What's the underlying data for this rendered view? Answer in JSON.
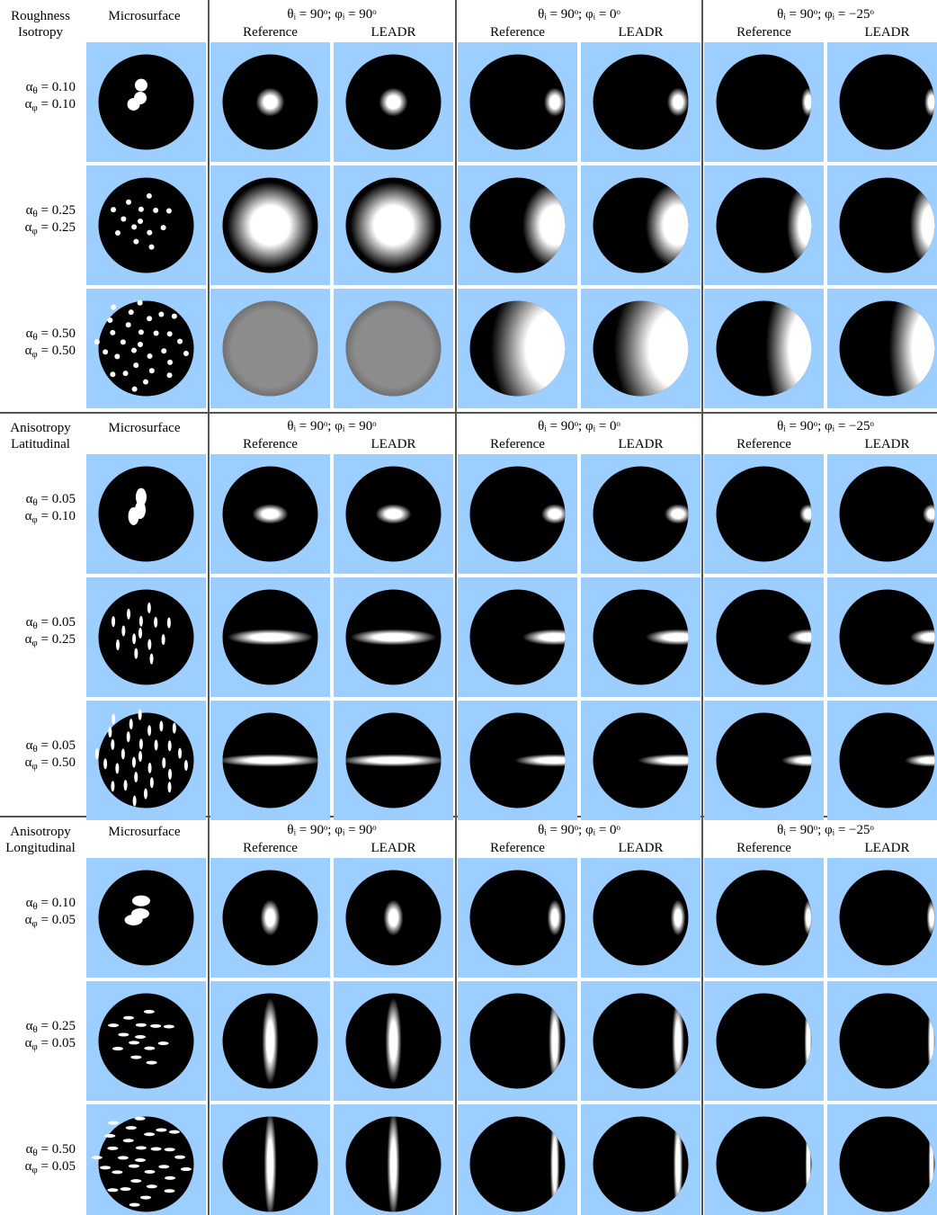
{
  "sections": [
    {
      "label": [
        "Roughness",
        "Isotropy"
      ],
      "microsurface": "Microsurface",
      "groups": [
        {
          "title": "θᵢ = 90ᵒ; φᵢ = 90ᵒ",
          "columns": [
            "Reference",
            "LEADR"
          ]
        },
        {
          "title": "θᵢ = 90ᵒ; φᵢ = 0ᵒ",
          "columns": [
            "Reference",
            "LEADR"
          ]
        },
        {
          "title": "θᵢ = 90ᵒ; φᵢ = −25ᵒ",
          "columns": [
            "Reference",
            "LEADR"
          ]
        }
      ],
      "rows": [
        {
          "alpha_theta": {
            "symbol": "α",
            "sub": "θ",
            "value": " = 0.10"
          },
          "alpha_phi": {
            "symbol": "α",
            "sub": "φ",
            "value": " = 0.10"
          }
        },
        {
          "alpha_theta": {
            "symbol": "α",
            "sub": "θ",
            "value": " = 0.25"
          },
          "alpha_phi": {
            "symbol": "α",
            "sub": "φ",
            "value": " = 0.25"
          }
        },
        {
          "alpha_theta": {
            "symbol": "α",
            "sub": "θ",
            "value": " = 0.50"
          },
          "alpha_phi": {
            "symbol": "α",
            "sub": "φ",
            "value": " = 0.50"
          }
        }
      ]
    },
    {
      "label": [
        "Anisotropy",
        "Latitudinal"
      ],
      "microsurface": "Microsurface",
      "groups": [
        {
          "title": "θᵢ = 90ᵒ; φᵢ = 90ᵒ",
          "columns": [
            "Reference",
            "LEADR"
          ]
        },
        {
          "title": "θᵢ = 90ᵒ; φᵢ = 0ᵒ",
          "columns": [
            "Reference",
            "LEADR"
          ]
        },
        {
          "title": "θᵢ = 90ᵒ; φᵢ = −25ᵒ",
          "columns": [
            "Reference",
            "LEADR"
          ]
        }
      ],
      "rows": [
        {
          "alpha_theta": {
            "symbol": "α",
            "sub": "θ",
            "value": " = 0.05"
          },
          "alpha_phi": {
            "symbol": "α",
            "sub": "φ",
            "value": " = 0.10"
          }
        },
        {
          "alpha_theta": {
            "symbol": "α",
            "sub": "θ",
            "value": " = 0.05"
          },
          "alpha_phi": {
            "symbol": "α",
            "sub": "φ",
            "value": " = 0.25"
          }
        },
        {
          "alpha_theta": {
            "symbol": "α",
            "sub": "θ",
            "value": " = 0.05"
          },
          "alpha_phi": {
            "symbol": "α",
            "sub": "φ",
            "value": " = 0.50"
          }
        }
      ]
    },
    {
      "label": [
        "Anisotropy",
        "Longitudinal"
      ],
      "microsurface": "Microsurface",
      "groups": [
        {
          "title": "θᵢ = 90ᵒ; φᵢ = 90ᵒ",
          "columns": [
            "Reference",
            "LEADR"
          ]
        },
        {
          "title": "θᵢ = 90ᵒ; φᵢ = 0ᵒ",
          "columns": [
            "Reference",
            "LEADR"
          ]
        },
        {
          "title": "θᵢ = 90ᵒ; φᵢ = −25ᵒ",
          "columns": [
            "Reference",
            "LEADR"
          ]
        }
      ],
      "rows": [
        {
          "alpha_theta": {
            "symbol": "α",
            "sub": "θ",
            "value": " = 0.10"
          },
          "alpha_phi": {
            "symbol": "α",
            "sub": "φ",
            "value": " = 0.05"
          }
        },
        {
          "alpha_theta": {
            "symbol": "α",
            "sub": "θ",
            "value": " = 0.25"
          },
          "alpha_phi": {
            "symbol": "α",
            "sub": "φ",
            "value": " = 0.05"
          }
        },
        {
          "alpha_theta": {
            "symbol": "α",
            "sub": "θ",
            "value": " = 0.50"
          },
          "alpha_phi": {
            "symbol": "α",
            "sub": "φ",
            "value": " = 0.05"
          }
        }
      ]
    }
  ]
}
